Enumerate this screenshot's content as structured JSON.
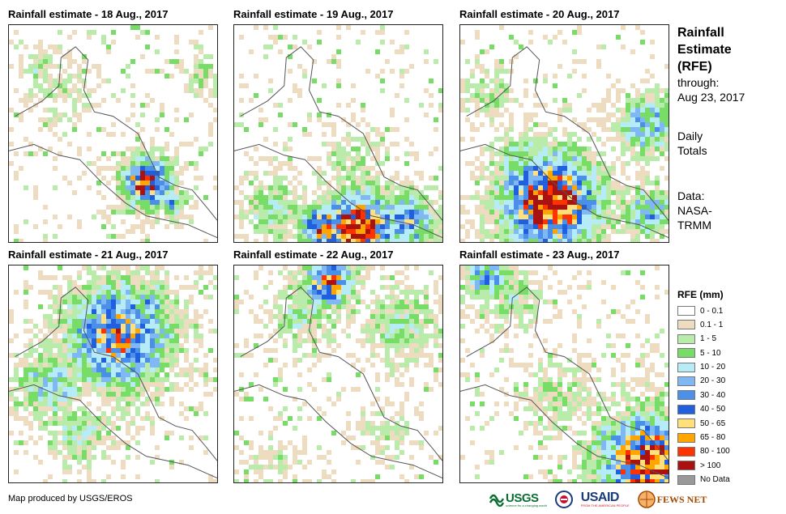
{
  "panels": [
    {
      "title": "Rainfall estimate - 18 Aug., 2017"
    },
    {
      "title": "Rainfall estimate - 19 Aug., 2017"
    },
    {
      "title": "Rainfall estimate - 20 Aug., 2017"
    },
    {
      "title": "Rainfall estimate - 21 Aug., 2017"
    },
    {
      "title": "Rainfall estimate - 22 Aug., 2017"
    },
    {
      "title": "Rainfall estimate - 23 Aug., 2017"
    }
  ],
  "side": {
    "title_line1": "Rainfall",
    "title_line2": "Estimate",
    "title_line3": "(RFE)",
    "through_label": "through:",
    "through_date": "Aug 23, 2017",
    "totals_line1": "Daily",
    "totals_line2": "Totals",
    "data_line1": "Data:",
    "data_line2": "NASA-",
    "data_line3": "TRMM"
  },
  "legend": {
    "title": "RFE (mm)",
    "items": [
      {
        "label": "0 - 0.1",
        "color": "#ffffff"
      },
      {
        "label": "0.1 - 1",
        "color": "#eedcc0"
      },
      {
        "label": "1 - 5",
        "color": "#b9ecab"
      },
      {
        "label": "5 - 10",
        "color": "#77dd66"
      },
      {
        "label": "10 - 20",
        "color": "#b5ecf7"
      },
      {
        "label": "20 - 30",
        "color": "#7fb8f2"
      },
      {
        "label": "30 - 40",
        "color": "#4a90e8"
      },
      {
        "label": "40 - 50",
        "color": "#1f5fe0"
      },
      {
        "label": "50 - 65",
        "color": "#ffe07a"
      },
      {
        "label": "65 - 80",
        "color": "#ffa500"
      },
      {
        "label": "80 - 100",
        "color": "#ff3300"
      },
      {
        "label": "> 100",
        "color": "#aa1111"
      },
      {
        "label": "No Data",
        "color": "#999999"
      }
    ]
  },
  "credit": "Map produced by USGS/EROS",
  "logos": {
    "usgs": "USGS",
    "usgs_tagline": "science for a changing world",
    "usaid": "USAID",
    "usaid_tagline": "FROM THE AMERICAN PEOPLE",
    "fewsnet": "FEWS NET"
  }
}
